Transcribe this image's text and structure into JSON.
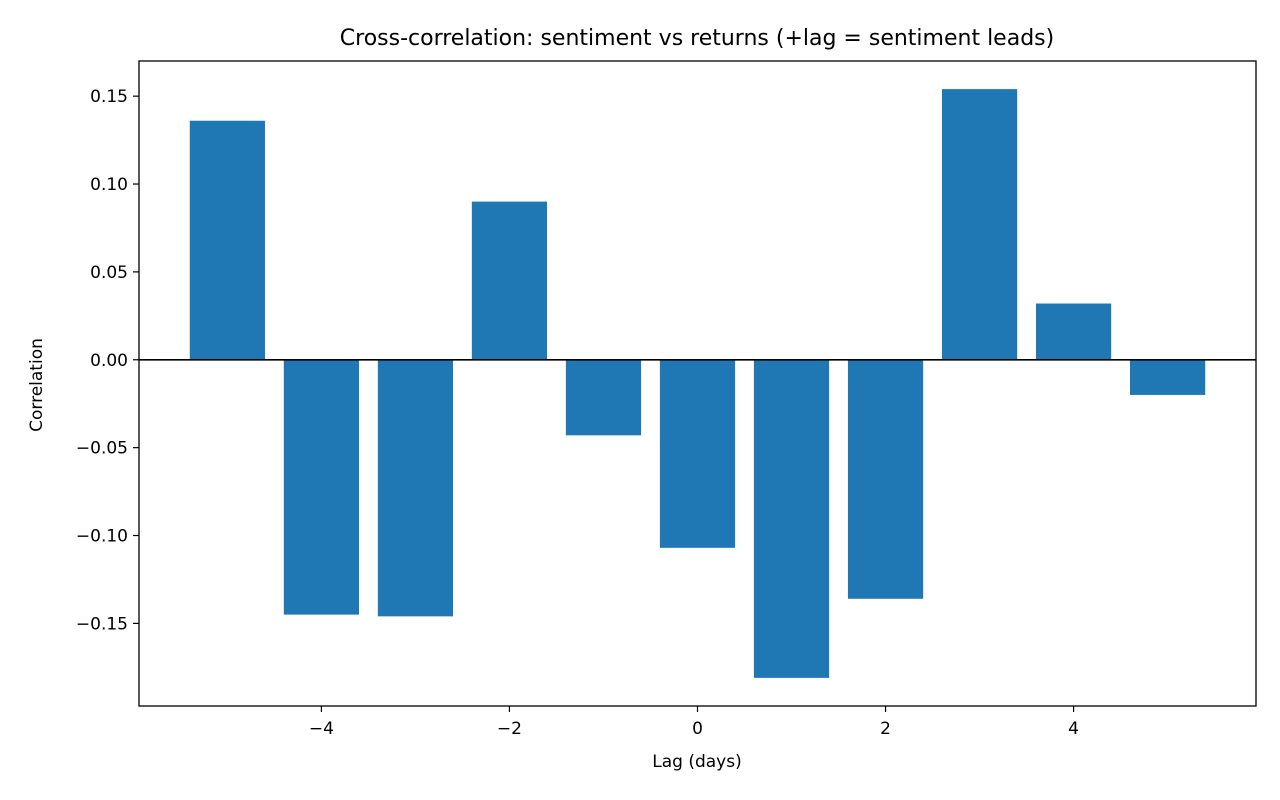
{
  "chart_data": {
    "type": "bar",
    "title": "Cross-correlation: sentiment vs returns  (+lag = sentiment leads)",
    "xlabel": "Lag (days)",
    "ylabel": "Correlation",
    "x": [
      -5,
      -4,
      -3,
      -2,
      -1,
      0,
      1,
      2,
      3,
      4,
      5
    ],
    "values": [
      0.136,
      -0.145,
      -0.146,
      0.09,
      -0.043,
      -0.107,
      -0.181,
      -0.136,
      0.154,
      0.032,
      -0.02
    ],
    "xlim": [
      -5.94,
      5.94
    ],
    "ylim": [
      -0.197,
      0.17
    ],
    "bar_width": 0.8,
    "xticks": [
      -4,
      -2,
      0,
      2,
      4
    ],
    "xtick_labels": [
      "−4",
      "−2",
      "0",
      "2",
      "4"
    ],
    "yticks": [
      -0.15,
      -0.1,
      -0.05,
      0.0,
      0.05,
      0.1,
      0.15
    ],
    "ytick_labels": [
      "−0.15",
      "−0.10",
      "−0.05",
      "0.00",
      "0.05",
      "0.10",
      "0.15"
    ],
    "zero_line": true,
    "grid": false,
    "legend": "none",
    "bar_color": "#1f77b4"
  }
}
